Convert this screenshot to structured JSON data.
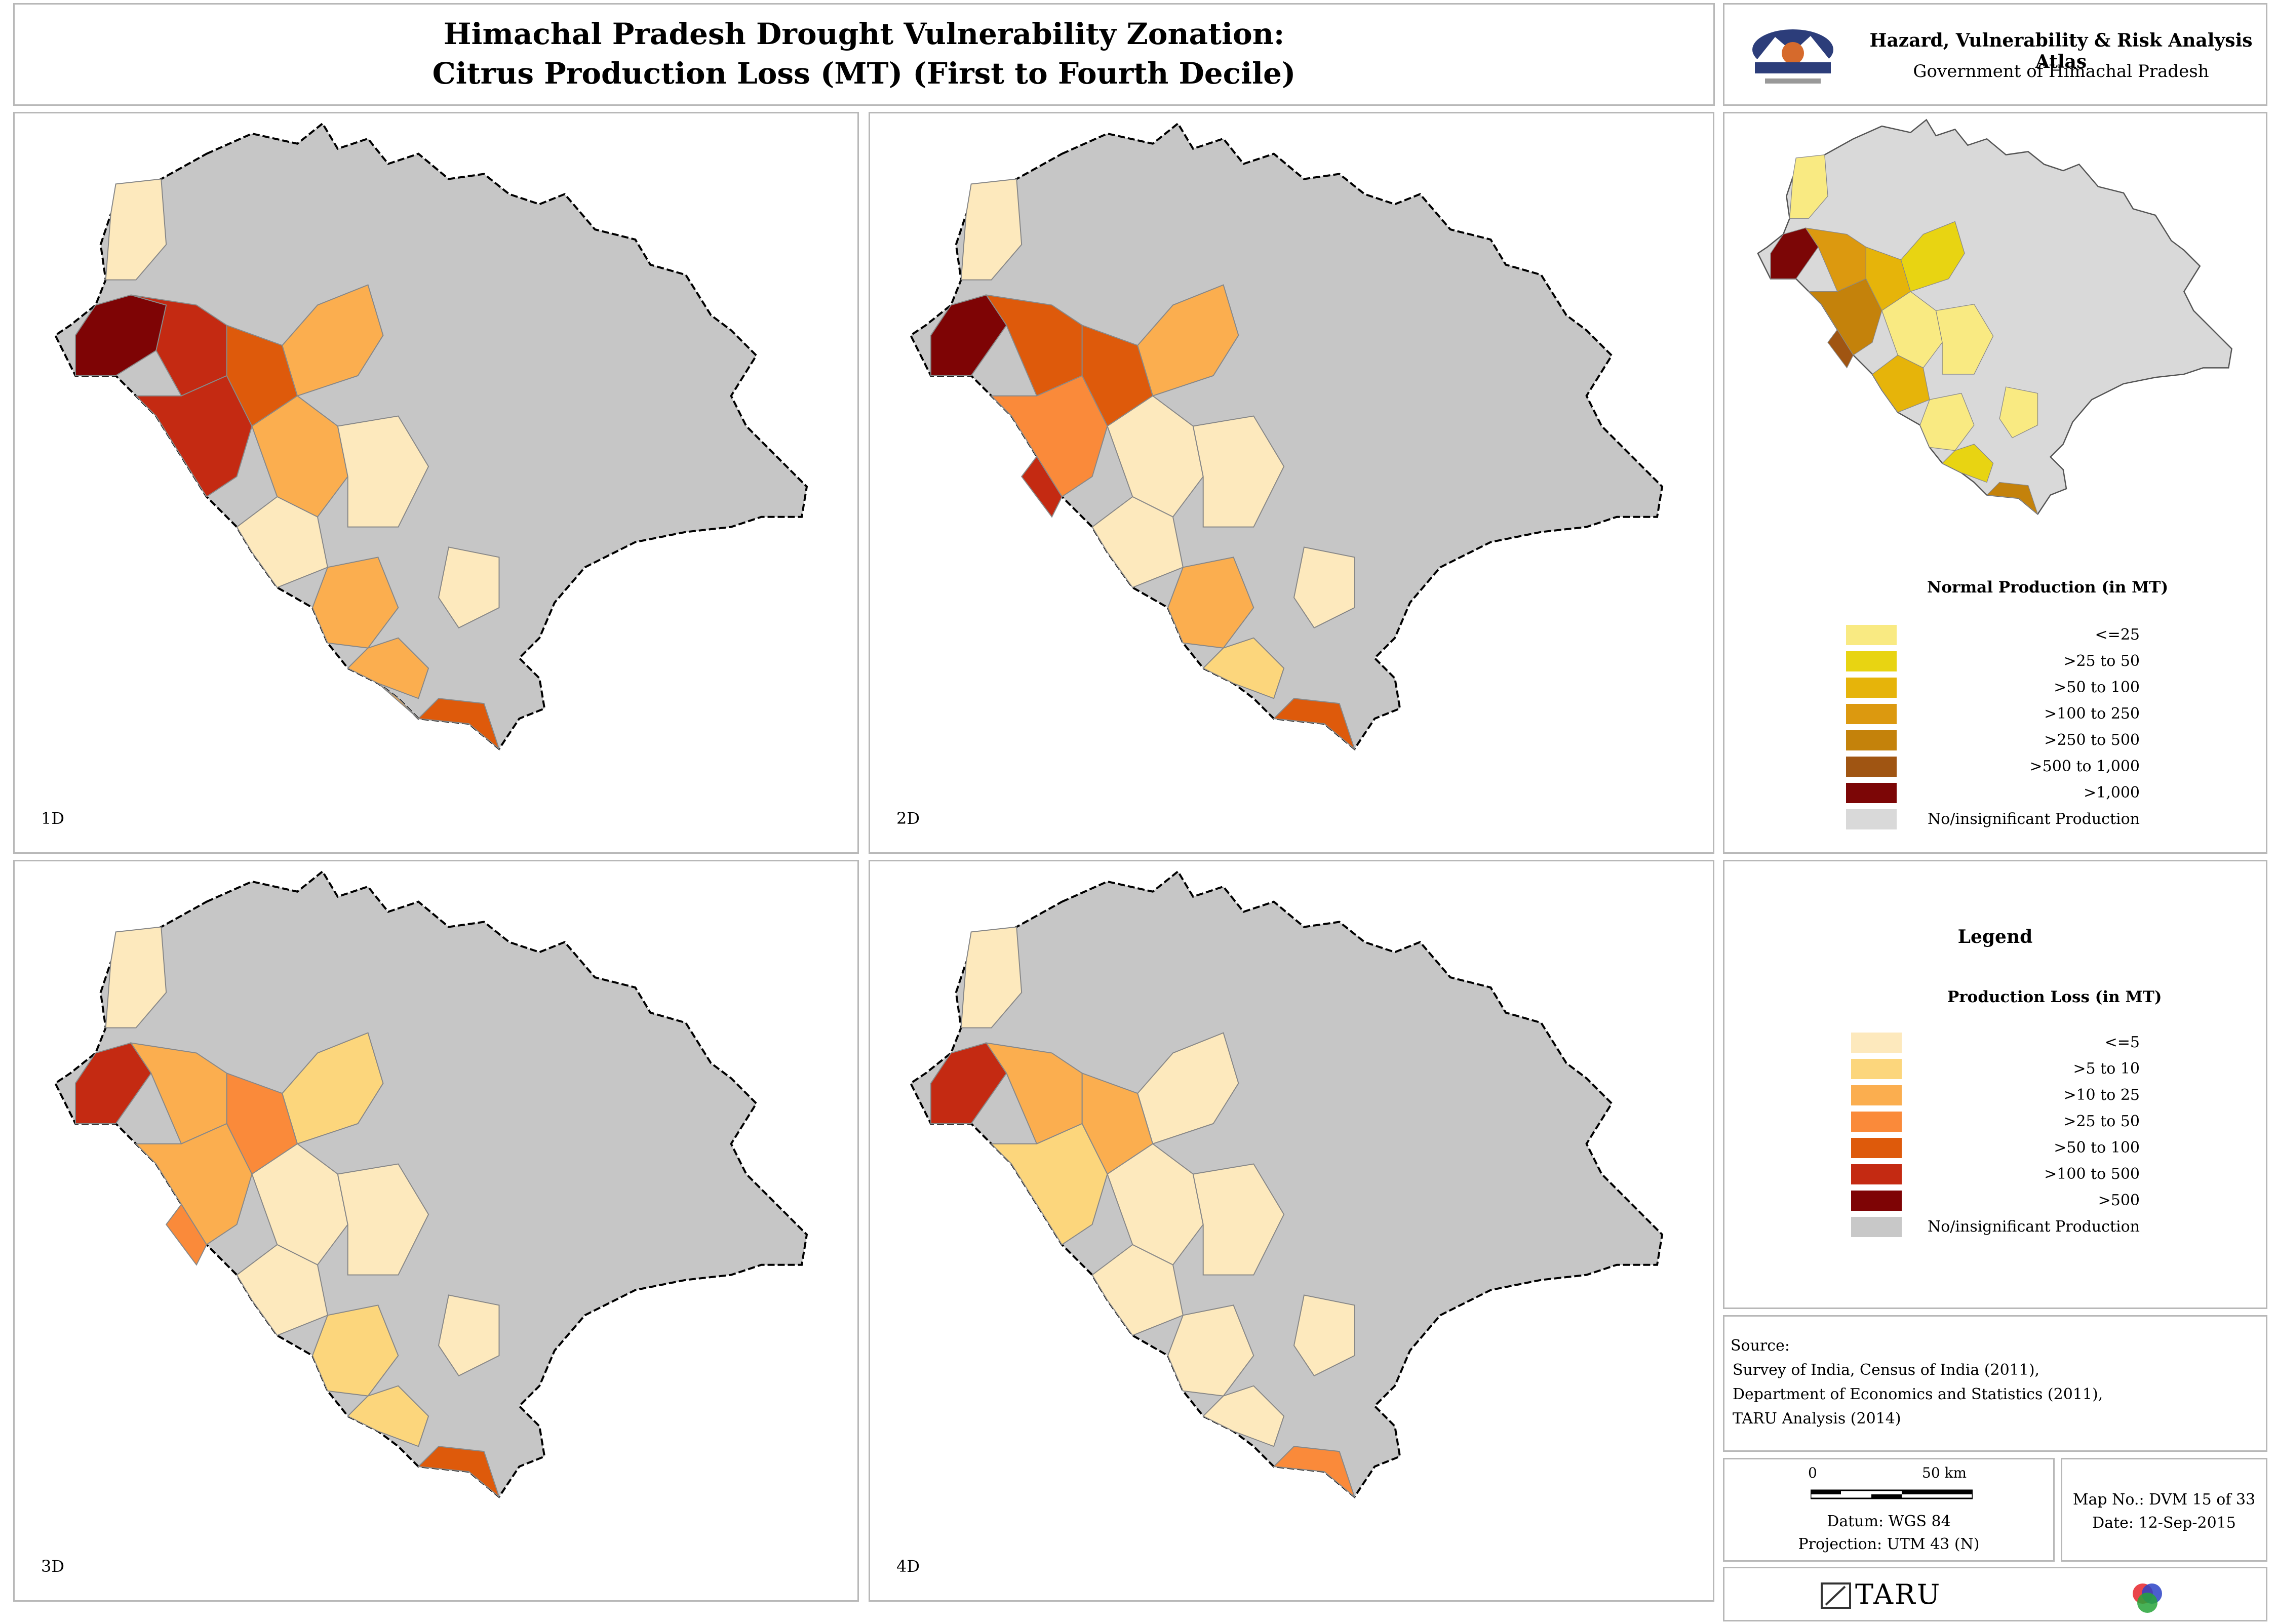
{
  "header": {
    "title_line1": "Himachal Pradesh Drought Vulnerability Zonation:",
    "title_line2": "Citrus Production Loss (MT) (First to Fourth Decile)"
  },
  "atlas": {
    "title": "Hazard, Vulnerability & Risk Analysis Atlas",
    "subtitle": "Government of Himachal Pradesh"
  },
  "maps": [
    {
      "label": "1D",
      "loss_fill": "#c42a12"
    },
    {
      "label": "2D",
      "loss_fill": "#d9560f"
    },
    {
      "label": "3D",
      "loss_fill": "#fa9a4f"
    },
    {
      "label": "4D",
      "loss_fill": "#fcca7c"
    }
  ],
  "normal_production": {
    "title": "Normal Production (in MT)",
    "classes": [
      {
        "label": "<=25",
        "color": "#f9ea82"
      },
      {
        "label": ">25 to 50",
        "color": "#e8d412"
      },
      {
        "label": ">50 to 100",
        "color": "#e6b40a"
      },
      {
        "label": ">100 to 250",
        "color": "#dc990f"
      },
      {
        "label": ">250 to 500",
        "color": "#c4820b"
      },
      {
        "label": ">500 to 1,000",
        "color": "#a05512"
      },
      {
        "label": ">1,000",
        "color": "#7c0606"
      },
      {
        "label": "No/insignificant Production",
        "color": "#d9d9d9"
      }
    ]
  },
  "legend": {
    "heading": "Legend",
    "title": "Production Loss (in MT)",
    "classes": [
      {
        "label": "<=5",
        "color": "#fde9bd"
      },
      {
        "label": ">5 to 10",
        "color": "#fcd67c"
      },
      {
        "label": ">10 to 25",
        "color": "#fbae4f"
      },
      {
        "label": ">25 to 50",
        "color": "#fa8a3a"
      },
      {
        "label": ">50 to 100",
        "color": "#de5a0b"
      },
      {
        "label": ">100 to 500",
        "color": "#c42a12"
      },
      {
        "label": ">500",
        "color": "#7e0405"
      },
      {
        "label": "No/insignificant Production",
        "color": "#c8c8c8"
      }
    ]
  },
  "source": {
    "heading": "Source:",
    "lines": [
      "Survey of India, Census of India (2011),",
      "Department of Economics and Statistics (2011),",
      "TARU Analysis (2014)"
    ]
  },
  "scale": {
    "zero": "0",
    "max": "50 km",
    "datum": "Datum: WGS 84",
    "projection": "Projection: UTM 43 (N)"
  },
  "map_info": {
    "map_no": "Map No.: DVM 15 of 33",
    "date": "Date: 12-Sep-2015"
  },
  "footer": {
    "org": "TARU"
  }
}
